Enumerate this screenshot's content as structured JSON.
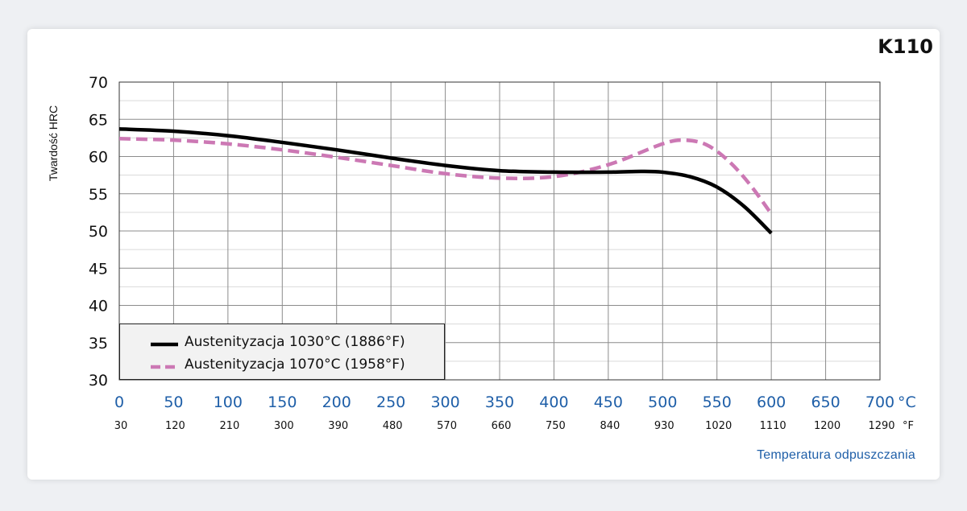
{
  "chart_data": {
    "type": "line",
    "title": "K110",
    "ylabel": "Twardość HRC",
    "xlabel": "Temperatura odpuszczania",
    "x_unit": "°C",
    "x_secondary_unit": "°F",
    "xlim": [
      0,
      700
    ],
    "ylim": [
      30,
      70
    ],
    "x_ticks": [
      "0",
      "50",
      "100",
      "150",
      "200",
      "250",
      "300",
      "350",
      "400",
      "450",
      "500",
      "550",
      "600",
      "650",
      "700"
    ],
    "x_ticks_secondary": [
      "30",
      "120",
      "210",
      "300",
      "390",
      "480",
      "570",
      "660",
      "750",
      "840",
      "930",
      "1020",
      "1110",
      "1200",
      "1290"
    ],
    "y_ticks": [
      "70",
      "65",
      "60",
      "55",
      "50",
      "45",
      "40",
      "35",
      "30"
    ],
    "grid": true,
    "legend_position": "bottom-left",
    "series": [
      {
        "name": "Austenityzacja 1030°C (1886°F)",
        "color": "#000000",
        "style": "solid",
        "x": [
          0,
          50,
          100,
          150,
          200,
          250,
          300,
          350,
          400,
          450,
          480,
          500,
          525,
          550,
          575,
          600
        ],
        "y": [
          63.7,
          63.4,
          62.8,
          61.9,
          60.9,
          59.8,
          58.8,
          58.1,
          57.9,
          57.9,
          58.0,
          57.9,
          57.3,
          55.9,
          53.3,
          49.7
        ]
      },
      {
        "name": "Austenityzacja 1070°C (1958°F)",
        "color": "#cc78b4",
        "style": "dashed",
        "x": [
          0,
          50,
          100,
          150,
          200,
          250,
          300,
          350,
          400,
          450,
          500,
          520,
          540,
          560,
          580,
          600
        ],
        "y": [
          62.4,
          62.2,
          61.7,
          60.9,
          59.9,
          58.8,
          57.7,
          57.1,
          57.3,
          58.9,
          61.7,
          62.2,
          61.6,
          59.5,
          56.3,
          52.3
        ]
      }
    ]
  }
}
